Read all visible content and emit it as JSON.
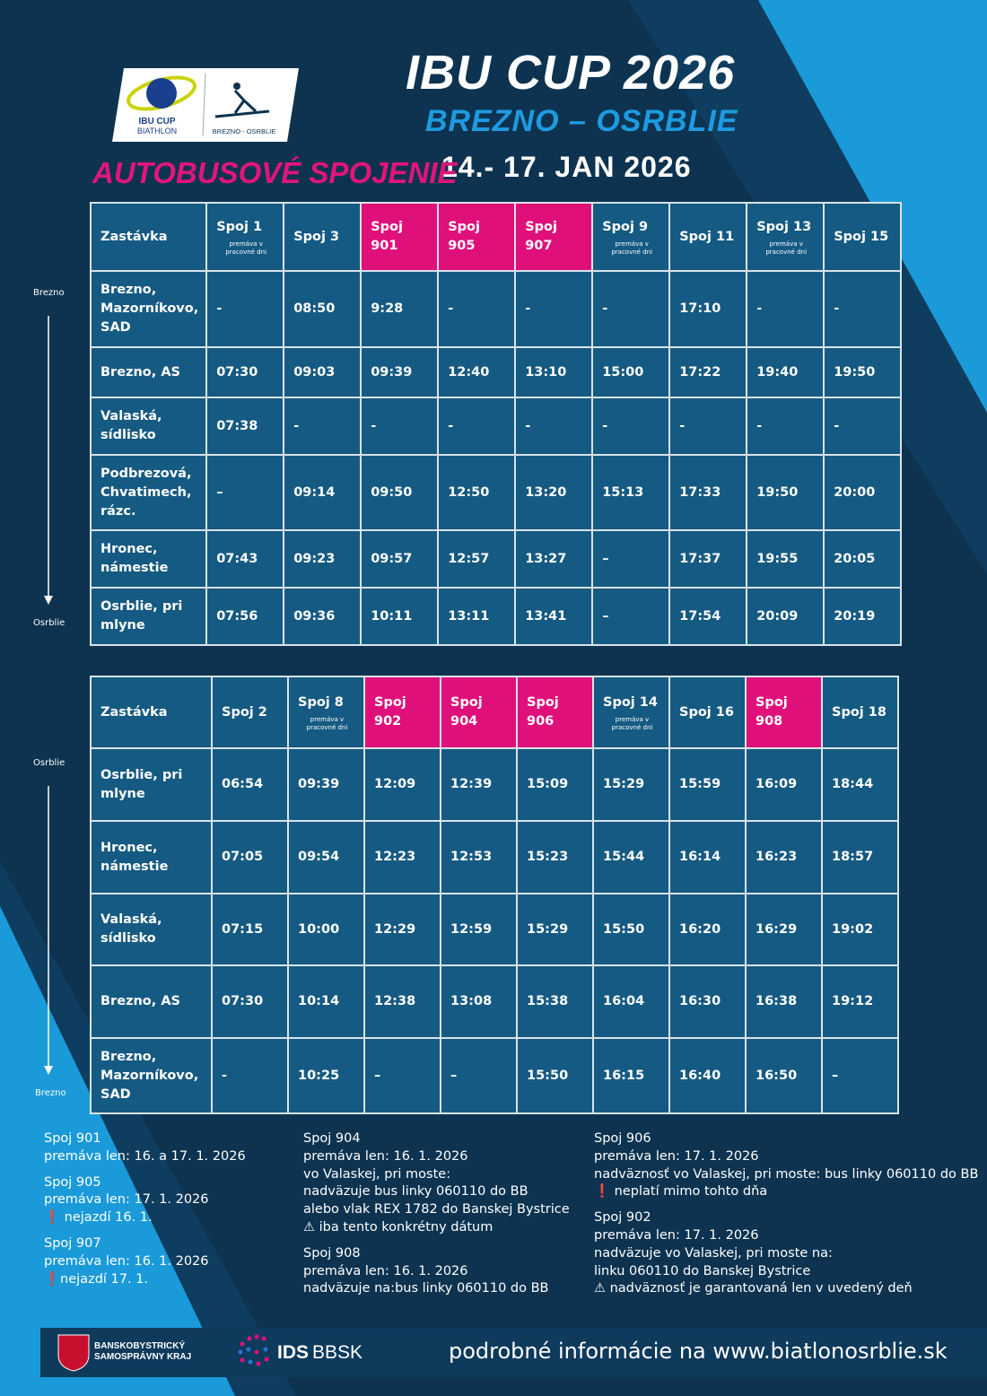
{
  "header": {
    "logo_ibu": "IBU CUP",
    "logo_biathlon": "BIATHLON",
    "logo_venue": "BREZNO - OSRBLIE",
    "title": "IBU CUP 2026",
    "subtitle": "BREZNO – OSRBLIE",
    "section": "AUTOBUSOVÉ SPOJENIE",
    "dates": "14.- 17. JAN 2026"
  },
  "tables": [
    {
      "from": "Brezno",
      "to": "Osrblie",
      "columns": [
        {
          "label": "Zastávka"
        },
        {
          "label": "Spoj 1",
          "note": "premáva v pracovné dni"
        },
        {
          "label": "Spoj 3"
        },
        {
          "label": "Spoj 901",
          "highlight": true
        },
        {
          "label": "Spoj 905",
          "highlight": true
        },
        {
          "label": "Spoj 907",
          "highlight": true
        },
        {
          "label": "Spoj 9",
          "note": "premáva v pracovné dni"
        },
        {
          "label": "Spoj 11"
        },
        {
          "label": "Spoj 13",
          "note": "premáva v pracovné dni"
        },
        {
          "label": "Spoj 15"
        }
      ],
      "rows": [
        [
          "Brezno, Mazorníkovo, SAD",
          "-",
          "08:50",
          "9:28",
          "-",
          "-",
          "-",
          "17:10",
          "-",
          "-"
        ],
        [
          "Brezno, AS",
          "07:30",
          "09:03",
          "09:39",
          "12:40",
          "13:10",
          "15:00",
          "17:22",
          "19:40",
          "19:50"
        ],
        [
          "Valaská, sídlisko",
          "07:38",
          "-",
          "-",
          "-",
          "-",
          "-",
          "-",
          "-",
          "-"
        ],
        [
          "Podbrezová, Chvatimech, rázc.",
          "–",
          "09:14",
          "09:50",
          "12:50",
          "13:20",
          "15:13",
          "17:33",
          "19:50",
          "20:00"
        ],
        [
          "Hronec, námestie",
          "07:43",
          "09:23",
          "09:57",
          "12:57",
          "13:27",
          "–",
          "17:37",
          "19:55",
          "20:05"
        ],
        [
          "Osrblie, pri mlyne",
          "07:56",
          "09:36",
          "10:11",
          "13:11",
          "13:41",
          "–",
          "17:54",
          "20:09",
          "20:19"
        ]
      ]
    },
    {
      "from": "Osrblie",
      "to": "Brezno",
      "columns": [
        {
          "label": "Zastávka"
        },
        {
          "label": "Spoj 2"
        },
        {
          "label": "Spoj 8",
          "note": "premáva v pracovné dni"
        },
        {
          "label": "Spoj 902",
          "highlight": true
        },
        {
          "label": "Spoj 904",
          "highlight": true
        },
        {
          "label": "Spoj 906",
          "highlight": true
        },
        {
          "label": "Spoj 14",
          "note": "premáva v pracovné dni"
        },
        {
          "label": "Spoj 16"
        },
        {
          "label": "Spoj 908",
          "highlight": true
        },
        {
          "label": "Spoj 18"
        }
      ],
      "rows": [
        [
          "Osrblie, pri mlyne",
          "06:54",
          "09:39",
          "12:09",
          "12:39",
          "15:09",
          "15:29",
          "15:59",
          "16:09",
          "18:44"
        ],
        [
          "Hronec, námestie",
          "07:05",
          "09:54",
          "12:23",
          "12:53",
          "15:23",
          "15:44",
          "16:14",
          "16:23",
          "18:57"
        ],
        [
          "Valaská, sídlisko",
          "07:15",
          "10:00",
          "12:29",
          "12:59",
          "15:29",
          "15:50",
          "16:20",
          "16:29",
          "19:02"
        ],
        [
          "Brezno, AS",
          "07:30",
          "10:14",
          "12:38",
          "13:08",
          "15:38",
          "16:04",
          "16:30",
          "16:38",
          "19:12"
        ],
        [
          "Brezno, Mazorníkovo, SAD",
          "-",
          "10:25",
          "–",
          "–",
          "15:50",
          "16:15",
          "16:40",
          "16:50",
          "–"
        ]
      ]
    }
  ],
  "notes": [
    [
      {
        "title": "Spoj 901",
        "lines": [
          "premáva len: 16. a 17. 1. 2026"
        ]
      },
      {
        "title": "Spoj 905",
        "lines": [
          "premáva len: 17. 1. 2026",
          "❗ nejazdí 16. 1."
        ]
      },
      {
        "title": "Spoj 907",
        "lines": [
          " premáva len: 16. 1. 2026",
          "❗nejazdí 17. 1."
        ]
      }
    ],
    [
      {
        "title": "Spoj 904",
        "lines": [
          " premáva len: 16. 1. 2026",
          "vo Valaskej, pri moste:",
          "nadväzuje bus linky 060110 do BB",
          "alebo vlak REX 1782 do Banskej Bystrice",
          "⚠ iba tento konkrétny dátum"
        ]
      },
      {
        "title": "Spoj 908",
        "lines": [
          "premáva len: 16. 1. 2026",
          "nadväzuje na:bus linky 060110 do BB"
        ]
      }
    ],
    [
      {
        "title": "Spoj 906",
        "lines": [
          "premáva len: 17. 1. 2026",
          "nadväznosť vo Valaskej, pri moste: bus linky 060110 do BB",
          "❗ neplatí mimo tohto dňa"
        ]
      },
      {
        "title": "Spoj 902",
        "lines": [
          " premáva len: 17. 1. 2026",
          "nadväzuje vo Valaskej, pri moste na:",
          "linku 060110 do Banskej Bystrice",
          "⚠ nadväznosť je garantovaná len v uvedený deň"
        ]
      }
    ]
  ],
  "footer": {
    "region_1": "BANSKOBYSTRICKÝ",
    "region_2": "SAMOSPRÁVNY KRAJ",
    "ids": "IDS",
    "bbsk": "BBSK",
    "info": "podrobné informácie na www.biatlonosrblie.sk"
  }
}
